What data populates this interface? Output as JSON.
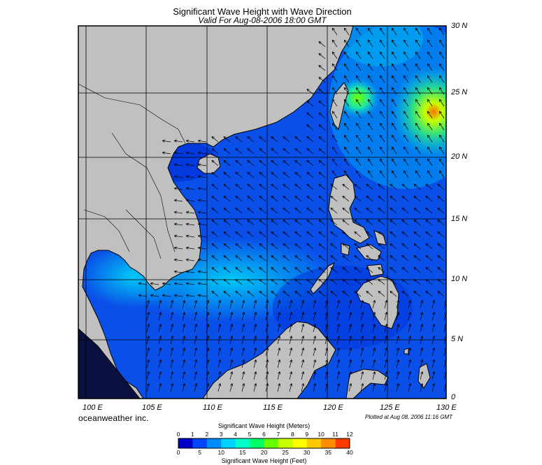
{
  "title": "Significant Wave Height with Wave Direction",
  "subtitle": "Valid For Aug-08-2006 18:00 GMT",
  "lat_labels": [
    "30 N",
    "25 N",
    "20 N",
    "15 N",
    "10 N",
    "5 N",
    "0"
  ],
  "lon_labels": [
    "100 E",
    "105 E",
    "110 E",
    "115 E",
    "120 E",
    "125 E",
    "130 E"
  ],
  "credit": "oceanweather inc.",
  "plotted": "Plotted at Aug 08, 2006 11:16 GMT",
  "colorbar": {
    "meters_title": "Significant Wave Height (Meters)",
    "feet_title": "Significant Wave Height (Feet)",
    "meters_ticks": [
      "0",
      "1",
      "2",
      "3",
      "4",
      "5",
      "6",
      "7",
      "8",
      "9",
      "10",
      "11",
      "12"
    ],
    "feet_ticks": [
      "0",
      "5",
      "10",
      "15",
      "20",
      "25",
      "30",
      "35",
      "40"
    ],
    "colors": [
      "#0000c8",
      "#0046ff",
      "#008cff",
      "#00d2ff",
      "#00ffc8",
      "#00ff64",
      "#64ff00",
      "#c8ff00",
      "#ffff00",
      "#ffc800",
      "#ff8c00",
      "#ff3c00"
    ]
  },
  "colors": {
    "land": "#c0c0c0",
    "sea_low": "#0040e0",
    "sea_mid": "#00a0f0",
    "border": "#000000"
  }
}
